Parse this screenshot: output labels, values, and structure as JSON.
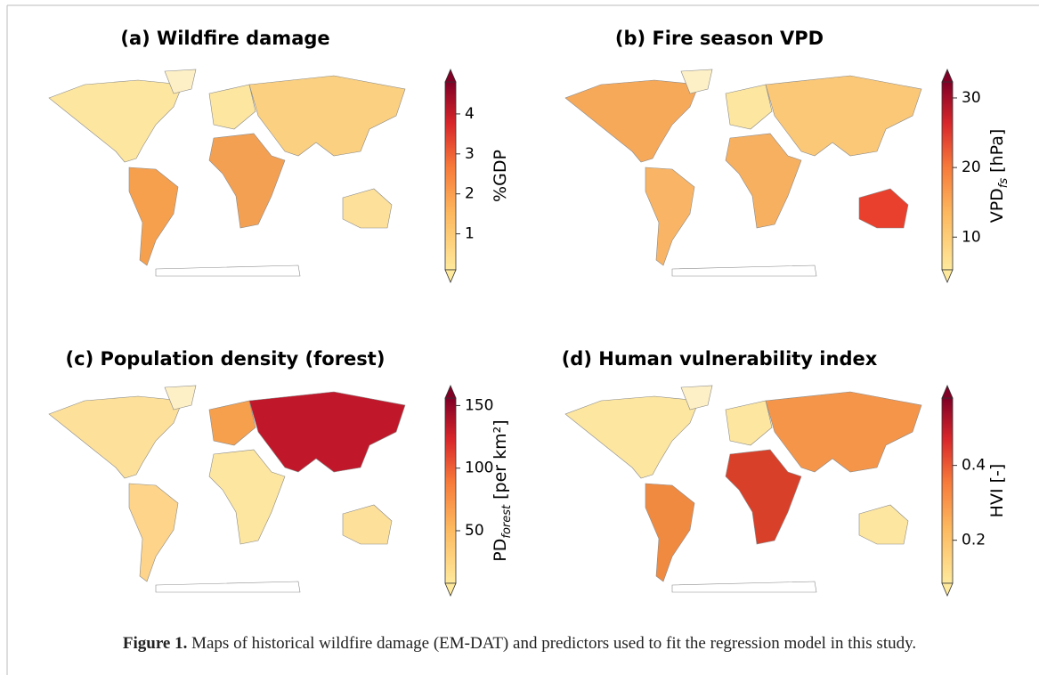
{
  "panels": [
    {
      "title": "(a) Wildfire damage",
      "colorbar": {
        "label": {
          "text": "%GDP"
        },
        "lim": [
          0.1,
          4.8
        ],
        "ticks": [
          1,
          2,
          3,
          4
        ]
      }
    },
    {
      "title": "(b) Fire season VPD",
      "colorbar": {
        "label": {
          "text": "VPD",
          "sub": "fs",
          "unit": "[hPa]"
        },
        "lim": [
          5.3,
          32.3
        ],
        "ticks": [
          10,
          20,
          30
        ]
      }
    },
    {
      "title": "(c) Population density (forest)",
      "colorbar": {
        "label": {
          "text": "PD",
          "sub": "forest",
          "unit": "[per km²]"
        },
        "lim": [
          8,
          156
        ],
        "ticks": [
          50,
          100,
          150
        ]
      }
    },
    {
      "title": "(d) Human vulnerability index",
      "colorbar": {
        "label": {
          "text": "HVI [-]"
        },
        "lim": [
          0.085,
          0.58
        ],
        "ticks": [
          0.2,
          0.4
        ]
      }
    }
  ],
  "caption": {
    "label": "Figure 1.",
    "text": "Maps of historical wildfire damage (EM-DAT) and predictors used to fit the regression model in this study."
  }
}
